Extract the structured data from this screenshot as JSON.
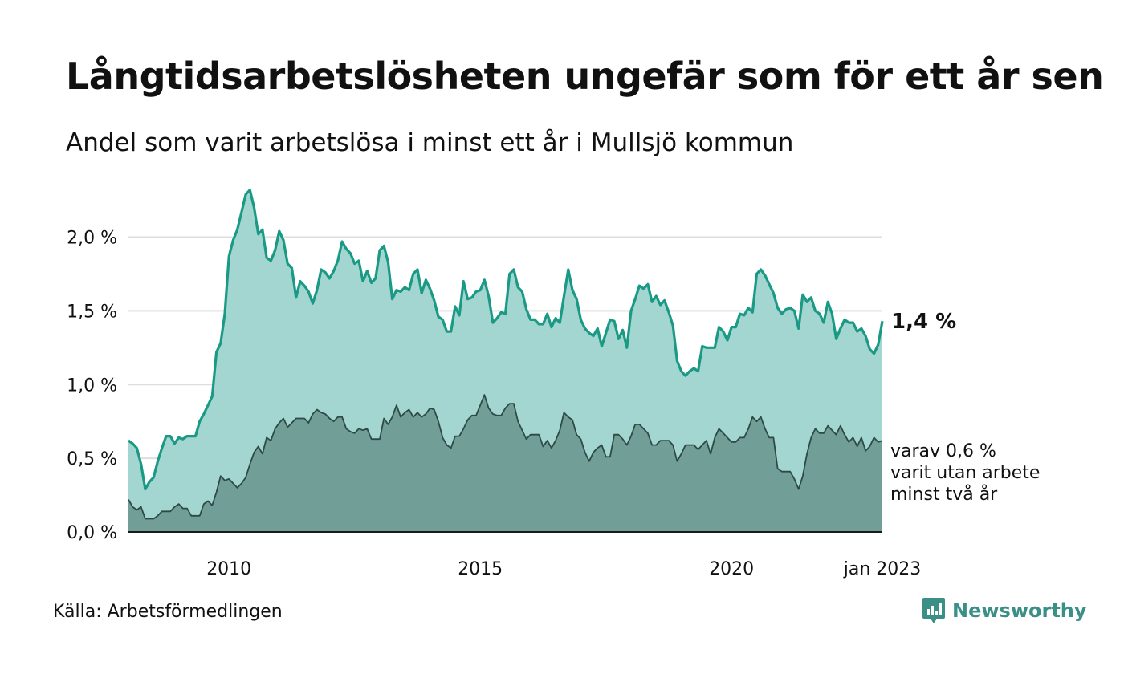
{
  "header": {
    "title": "Långtidsarbetslösheten ungefär som för ett år sen",
    "subtitle": "Andel som varit arbetslösa i minst ett år i Mullsjö kommun"
  },
  "footer": {
    "source": "Källa: Arbetsförmedlingen",
    "brand": "Newsworthy",
    "brand_icon": "newsworthy-logo-icon"
  },
  "colors": {
    "series_total_line": "#1a9985",
    "series_total_fill": "#a3d5d1",
    "series_long_line": "#2e4a45",
    "series_long_fill": "#719e97",
    "grid": "#dedede",
    "brand": "#3a8f86"
  },
  "chart_data": {
    "type": "area",
    "x_unit": "month",
    "x_start": "2008-01",
    "x_end": "2023-01",
    "ylim": [
      0,
      2.4
    ],
    "y_ticks": [
      "0,0 %",
      "0,5 %",
      "1,0 %",
      "1,5 %",
      "2,0 %"
    ],
    "y_tick_values": [
      0,
      0.5,
      1.0,
      1.5,
      2.0
    ],
    "x_ticks": [
      "2010",
      "2015",
      "2020",
      "jan 2023"
    ],
    "x_tick_values": [
      "2010-01",
      "2015-01",
      "2020-01",
      "2023-01"
    ],
    "grid": "horizontal",
    "series": [
      {
        "values": [
          0.62,
          0.6,
          0.57,
          0.46,
          0.29,
          0.34,
          0.37,
          0.48,
          0.57,
          0.65,
          0.65,
          0.6,
          0.64,
          0.63,
          0.65,
          0.65,
          0.65,
          0.75,
          0.8,
          0.86,
          0.92,
          1.22,
          1.28,
          1.48,
          1.87,
          1.98,
          2.05,
          2.17,
          2.29,
          2.32,
          2.2,
          2.02,
          2.05,
          1.86,
          1.84,
          1.91,
          2.04,
          1.98,
          1.82,
          1.79,
          1.59,
          1.7,
          1.67,
          1.63,
          1.55,
          1.64,
          1.78,
          1.76,
          1.72,
          1.77,
          1.84,
          1.97,
          1.92,
          1.89,
          1.82,
          1.84,
          1.7,
          1.77,
          1.69,
          1.72,
          1.91,
          1.94,
          1.83,
          1.58,
          1.64,
          1.63,
          1.66,
          1.64,
          1.75,
          1.78,
          1.62,
          1.71,
          1.65,
          1.57,
          1.46,
          1.44,
          1.36,
          1.36,
          1.53,
          1.47,
          1.7,
          1.58,
          1.59,
          1.63,
          1.64,
          1.71,
          1.6,
          1.42,
          1.45,
          1.49,
          1.48,
          1.75,
          1.78,
          1.66,
          1.63,
          1.51,
          1.44,
          1.44,
          1.41,
          1.41,
          1.48,
          1.39,
          1.45,
          1.42,
          1.6,
          1.78,
          1.64,
          1.58,
          1.44,
          1.38,
          1.35,
          1.33,
          1.38,
          1.26,
          1.35,
          1.44,
          1.43,
          1.31,
          1.37,
          1.25,
          1.5,
          1.58,
          1.67,
          1.65,
          1.68,
          1.56,
          1.6,
          1.54,
          1.57,
          1.49,
          1.4,
          1.16,
          1.09,
          1.06,
          1.09,
          1.11,
          1.09,
          1.26,
          1.25,
          1.25,
          1.25,
          1.39,
          1.36,
          1.3,
          1.39,
          1.39,
          1.48,
          1.47,
          1.52,
          1.49,
          1.75,
          1.78,
          1.74,
          1.68,
          1.62,
          1.52,
          1.48,
          1.51,
          1.52,
          1.5,
          1.38,
          1.61,
          1.56,
          1.59,
          1.5,
          1.48,
          1.42,
          1.56,
          1.48,
          1.31,
          1.38,
          1.44,
          1.42,
          1.42,
          1.36,
          1.38,
          1.33,
          1.24,
          1.21,
          1.27,
          1.43
        ]
      },
      {
        "values": [
          0.22,
          0.17,
          0.15,
          0.17,
          0.09,
          0.09,
          0.09,
          0.11,
          0.14,
          0.14,
          0.14,
          0.17,
          0.19,
          0.16,
          0.16,
          0.11,
          0.11,
          0.11,
          0.19,
          0.21,
          0.18,
          0.27,
          0.38,
          0.35,
          0.36,
          0.33,
          0.3,
          0.33,
          0.37,
          0.46,
          0.54,
          0.58,
          0.53,
          0.64,
          0.62,
          0.7,
          0.74,
          0.77,
          0.71,
          0.74,
          0.77,
          0.77,
          0.77,
          0.74,
          0.8,
          0.83,
          0.81,
          0.8,
          0.77,
          0.75,
          0.78,
          0.78,
          0.7,
          0.68,
          0.67,
          0.7,
          0.69,
          0.7,
          0.63,
          0.63,
          0.63,
          0.77,
          0.73,
          0.78,
          0.86,
          0.78,
          0.81,
          0.83,
          0.78,
          0.81,
          0.78,
          0.8,
          0.84,
          0.83,
          0.75,
          0.64,
          0.59,
          0.57,
          0.65,
          0.65,
          0.7,
          0.76,
          0.79,
          0.79,
          0.86,
          0.93,
          0.84,
          0.8,
          0.79,
          0.79,
          0.84,
          0.87,
          0.87,
          0.75,
          0.69,
          0.63,
          0.66,
          0.66,
          0.66,
          0.58,
          0.62,
          0.57,
          0.62,
          0.69,
          0.81,
          0.78,
          0.76,
          0.66,
          0.63,
          0.54,
          0.48,
          0.54,
          0.57,
          0.59,
          0.51,
          0.51,
          0.66,
          0.66,
          0.63,
          0.59,
          0.65,
          0.73,
          0.73,
          0.7,
          0.67,
          0.59,
          0.59,
          0.62,
          0.62,
          0.62,
          0.59,
          0.48,
          0.53,
          0.59,
          0.59,
          0.59,
          0.56,
          0.59,
          0.62,
          0.53,
          0.64,
          0.7,
          0.67,
          0.64,
          0.61,
          0.61,
          0.64,
          0.64,
          0.7,
          0.78,
          0.75,
          0.78,
          0.7,
          0.64,
          0.64,
          0.43,
          0.41,
          0.41,
          0.41,
          0.36,
          0.29,
          0.38,
          0.53,
          0.64,
          0.7,
          0.67,
          0.67,
          0.72,
          0.69,
          0.66,
          0.72,
          0.66,
          0.61,
          0.64,
          0.58,
          0.64,
          0.55,
          0.58,
          0.64,
          0.61,
          0.62
        ]
      }
    ],
    "annotations": {
      "latest_total": "1,4 %",
      "latest_long_lines": [
        "varav 0,6 %",
        "varit utan arbete",
        "minst två år"
      ]
    }
  }
}
